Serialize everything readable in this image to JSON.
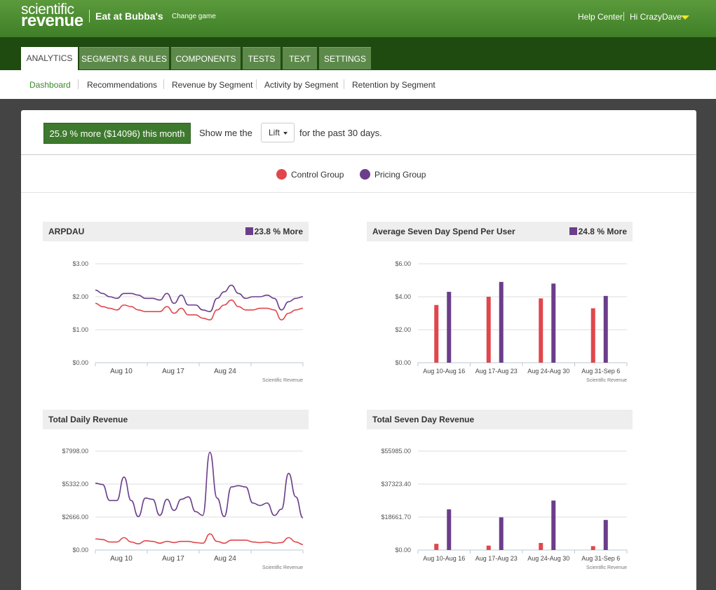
{
  "header": {
    "logo_line1": "scientific",
    "logo_line2": "revenue",
    "game_title": "Eat at Bubba's",
    "change_game": "Change game",
    "help_center": "Help Center",
    "user_greeting": "Hi CrazyDave"
  },
  "tabs": [
    {
      "label": "ANALYTICS",
      "active": true
    },
    {
      "label": "SEGMENTS & RULES",
      "active": false
    },
    {
      "label": "COMPONENTS",
      "active": false
    },
    {
      "label": "TESTS",
      "active": false
    },
    {
      "label": "TEXT",
      "active": false
    },
    {
      "label": "SETTINGS",
      "active": false
    }
  ],
  "subnav": [
    {
      "label": "Dashboard",
      "active": true
    },
    {
      "label": "Recommendations",
      "active": false
    },
    {
      "label": "Revenue by Segment",
      "active": false
    },
    {
      "label": "Activity by Segment",
      "active": false
    },
    {
      "label": "Retention by Segment",
      "active": false
    }
  ],
  "summary": {
    "badge": "25.9 % more ($14096) this month",
    "show_me": "Show me the",
    "dropdown_value": "Lift",
    "period": "for the past 30 days."
  },
  "legend": {
    "control": {
      "label": "Control Group",
      "color": "#e0474c"
    },
    "pricing": {
      "label": "Pricing Group",
      "color": "#6b3d8a"
    }
  },
  "colors": {
    "control": "#e0474c",
    "pricing": "#6b3d8a",
    "brand_green": "#3e7a2e"
  },
  "chart_data": [
    {
      "type": "line",
      "title": "ARPDAU",
      "lift": "23.8 % More",
      "credit": "Scientific Revenue",
      "yticks": [
        "$0.00",
        "$1.00",
        "$2.00",
        "$3.00"
      ],
      "ylim": [
        0,
        3
      ],
      "xticks": [
        "Aug 10",
        "Aug 17",
        "Aug 24"
      ],
      "series": [
        {
          "name": "Pricing Group",
          "values": [
            2.2,
            2.1,
            2.0,
            1.95,
            2.1,
            2.1,
            2.05,
            1.95,
            1.95,
            1.9,
            2.1,
            1.8,
            2.05,
            1.75,
            1.75,
            1.6,
            1.55,
            1.95,
            2.15,
            2.35,
            2.1,
            1.95,
            2.0,
            2.0,
            2.05,
            1.95,
            1.6,
            1.85,
            1.95,
            2.0
          ]
        },
        {
          "name": "Control Group",
          "values": [
            1.8,
            1.7,
            1.65,
            1.6,
            1.75,
            1.7,
            1.6,
            1.55,
            1.55,
            1.55,
            1.7,
            1.5,
            1.65,
            1.45,
            1.45,
            1.35,
            1.3,
            1.6,
            1.75,
            1.9,
            1.7,
            1.6,
            1.6,
            1.65,
            1.65,
            1.6,
            1.3,
            1.5,
            1.6,
            1.65
          ]
        }
      ]
    },
    {
      "type": "bar",
      "title": "Average Seven Day Spend Per User",
      "lift": "24.8 % More",
      "credit": "Scientific Revenue",
      "yticks": [
        "$0.00",
        "$2.00",
        "$4.00",
        "$6.00"
      ],
      "ylim": [
        0,
        6
      ],
      "categories": [
        "Aug 10-Aug 16",
        "Aug 17-Aug 23",
        "Aug 24-Aug 30",
        "Aug 31-Sep 6"
      ],
      "series": [
        {
          "name": "Control Group",
          "values": [
            3.5,
            4.0,
            3.9,
            3.3
          ]
        },
        {
          "name": "Pricing Group",
          "values": [
            4.3,
            4.9,
            4.8,
            4.05
          ]
        }
      ]
    },
    {
      "type": "line",
      "title": "Total Daily Revenue",
      "credit": "Scientific Revenue",
      "yticks": [
        "$0.00",
        "$2666.00",
        "$5332.00",
        "$7998.00"
      ],
      "ylim": [
        0,
        7998
      ],
      "xticks": [
        "Aug 10",
        "Aug 17",
        "Aug 24"
      ],
      "series": [
        {
          "name": "Pricing Group",
          "values": [
            5400,
            5300,
            4000,
            4000,
            5900,
            4000,
            2700,
            4200,
            4100,
            2800,
            4100,
            3200,
            4100,
            4300,
            3100,
            2800,
            7900,
            4200,
            2700,
            5100,
            5200,
            5100,
            3800,
            3600,
            3800,
            2800,
            3300,
            6200,
            4300,
            2600
          ]
        },
        {
          "name": "Control Group",
          "values": [
            900,
            850,
            650,
            650,
            1000,
            650,
            500,
            750,
            700,
            550,
            700,
            600,
            700,
            700,
            600,
            550,
            1300,
            700,
            550,
            800,
            800,
            800,
            650,
            600,
            650,
            550,
            600,
            1000,
            650,
            450
          ]
        }
      ]
    },
    {
      "type": "bar",
      "title": "Total Seven Day Revenue",
      "credit": "Scientific Revenue",
      "yticks": [
        "$0.00",
        "$18661.70",
        "$37323.40",
        "$55985.00"
      ],
      "ylim": [
        0,
        55985
      ],
      "categories": [
        "Aug 10-Aug 16",
        "Aug 17-Aug 23",
        "Aug 24-Aug 30",
        "Aug 31-Sep 6"
      ],
      "series": [
        {
          "name": "Control Group",
          "values": [
            3500,
            2500,
            4000,
            2200
          ]
        },
        {
          "name": "Pricing Group",
          "values": [
            23000,
            18500,
            28000,
            17000
          ]
        }
      ]
    }
  ]
}
